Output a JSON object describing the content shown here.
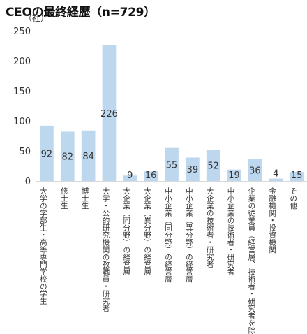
{
  "chart_data": {
    "type": "bar",
    "title": "CEOの最終経歴（n=729）",
    "ylabel": "（社）",
    "ylim": [
      0,
      250
    ],
    "yticks": [
      0,
      50,
      100,
      150,
      200,
      250
    ],
    "grid": false,
    "legend": "none",
    "categories": [
      "大学の学部生・高等専門学校の学生",
      "修士生",
      "博士生",
      "大学・公的研究機関の教職員・研究者",
      "大企業（同分野）の経営層",
      "大企業（異分野）の経営層",
      "中小企業（同分野）の経営層",
      "中小企業（異分野）の経営層",
      "大企業の技術者・研究者",
      "中小企業の技術者・研究者",
      "企業の従業員（経営層、技術者・研究者を除く）",
      "金融機関・投資機関",
      "その他"
    ],
    "values": [
      92,
      82,
      84,
      226,
      9,
      16,
      55,
      39,
      52,
      19,
      36,
      4,
      15
    ],
    "colors": {
      "bar": "#bdd7ee",
      "axis": "#d9d9d9",
      "text": "#333333"
    }
  }
}
